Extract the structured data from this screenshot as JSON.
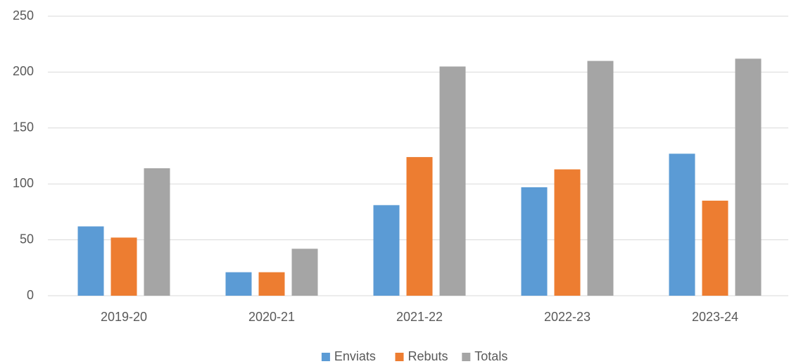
{
  "chart_data": {
    "type": "bar",
    "categories": [
      "2019-20",
      "2020-21",
      "2021-22",
      "2022-23",
      "2023-24"
    ],
    "series": [
      {
        "name": "Enviats",
        "color": "#5b9bd5",
        "values": [
          62,
          21,
          81,
          97,
          127
        ]
      },
      {
        "name": "Rebuts",
        "color": "#ed7d31",
        "values": [
          52,
          21,
          124,
          113,
          85
        ]
      },
      {
        "name": "Totals",
        "color": "#a5a5a5",
        "values": [
          114,
          42,
          205,
          210,
          212
        ]
      }
    ],
    "ylim": [
      0,
      250
    ],
    "yticks": [
      0,
      50,
      100,
      150,
      200,
      250
    ],
    "grid": true,
    "legend": "bottom"
  }
}
